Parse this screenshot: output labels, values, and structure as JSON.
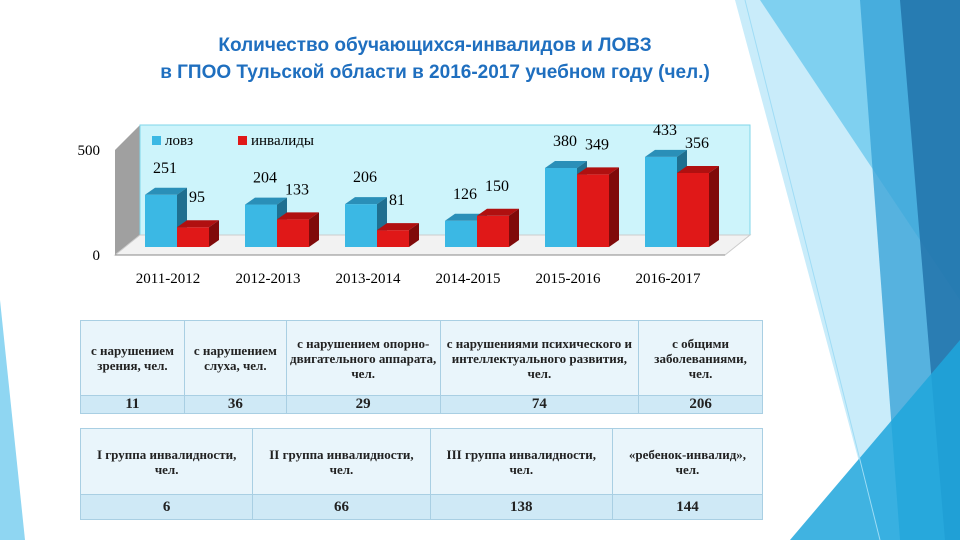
{
  "title": [
    "Количество обучающихся-инвалидов и ЛОВЗ",
    "в ГПОО Тульской области в 2016-2017 учебном году (чел.)"
  ],
  "chart_data": {
    "type": "bar",
    "three_d": true,
    "categories": [
      "2011-2012",
      "2012-2013",
      "2013-2014",
      "2014-2015",
      "2015-2016",
      "2016-2017"
    ],
    "series": [
      {
        "name": "ловз",
        "values": [
          251,
          204,
          206,
          126,
          380,
          433
        ],
        "color": "#3bb8e4"
      },
      {
        "name": "инвалиды",
        "values": [
          95,
          133,
          81,
          150,
          349,
          356
        ],
        "color": "#e01818"
      }
    ],
    "yticks": [
      0,
      500
    ],
    "ylim": [
      0,
      500
    ],
    "legend": "top-left",
    "grid": false
  },
  "table1": {
    "headers": [
      "с нарушением зрения, чел.",
      "с нарушением слуха, чел.",
      "с нарушением опорно-двигательного аппарата, чел.",
      "с нарушениями психического и интеллектуального развития, чел.",
      "с общими заболеваниями, чел."
    ],
    "values": [
      "11",
      "36",
      "29",
      "74",
      "206"
    ]
  },
  "table2": {
    "headers": [
      "I группа инвалидности, чел.",
      "II группа инвалидности, чел.",
      "III группа инвалидности, чел.",
      "«ребенок-инвалид», чел."
    ],
    "values": [
      "6",
      "66",
      "138",
      "144"
    ]
  }
}
